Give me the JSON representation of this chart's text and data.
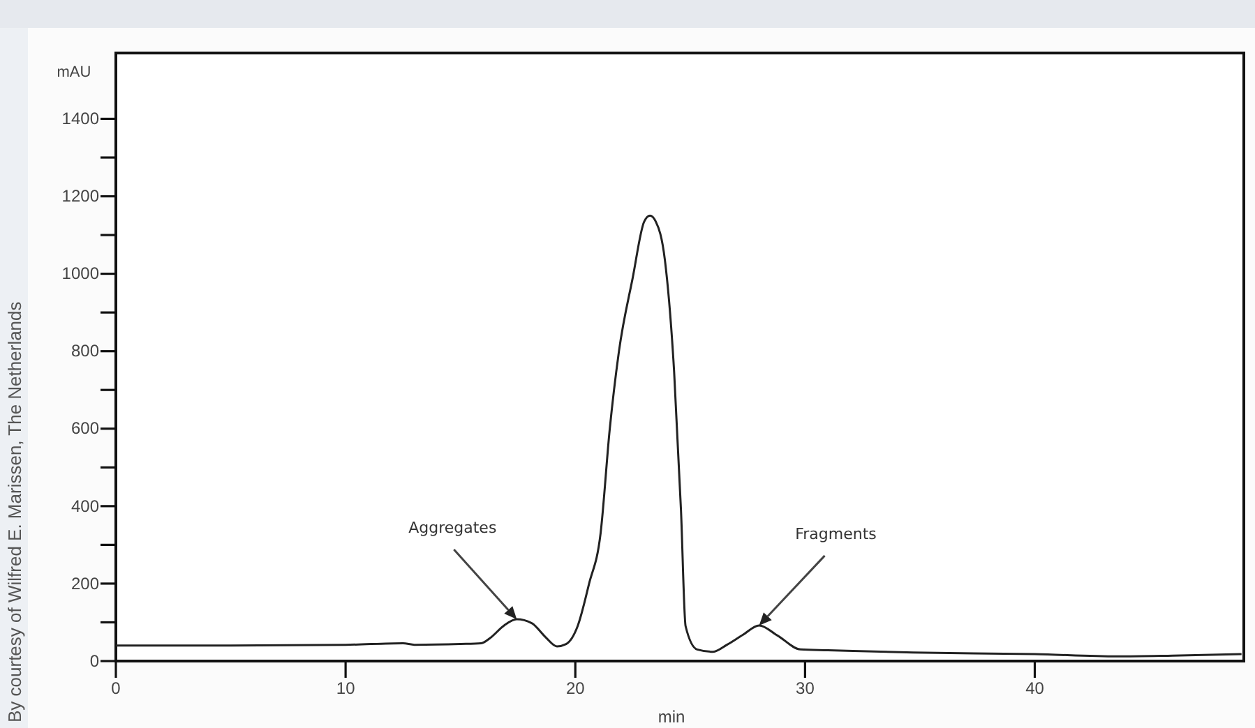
{
  "chart_data": {
    "type": "line",
    "xlabel": "min",
    "ylabel": "mAU",
    "x": [
      0,
      5,
      10,
      12.5,
      13,
      15,
      15.9,
      16.3,
      16.9,
      17.45,
      18.1,
      18.7,
      19.2,
      19.6,
      20.1,
      20.6,
      21.1,
      21.5,
      21.9,
      22.5,
      23.0,
      23.25,
      23.5,
      23.9,
      24.3,
      24.6,
      24.8,
      25.3,
      26.0,
      26.6,
      27.3,
      28.0,
      28.8,
      29.8,
      31,
      34.7,
      40,
      43.6,
      46,
      49
    ],
    "series": [
      {
        "color": "#222222",
        "values": [
          40,
          40,
          42,
          46,
          42,
          44,
          46,
          60,
          92,
          108,
          98,
          62,
          38,
          44,
          90,
          200,
          330,
          600,
          800,
          990,
          1135,
          1150,
          1135,
          1035,
          748,
          389,
          90,
          30,
          24,
          42,
          68,
          92,
          66,
          30,
          28,
          22,
          18,
          12,
          14,
          18
        ]
      }
    ],
    "xlim": [
      0,
      49.1
    ],
    "xticks": [
      0,
      10,
      20,
      30,
      40
    ],
    "ylim": [
      0,
      1570
    ],
    "yticks": [
      0,
      {
        "value": 100,
        "label": null
      },
      200,
      {
        "value": 300,
        "label": null
      },
      400,
      {
        "value": 500,
        "label": null
      },
      600,
      {
        "value": 700,
        "label": null
      },
      800,
      {
        "value": 900,
        "label": null
      },
      1000,
      {
        "value": 1100,
        "label": null
      },
      1200,
      {
        "value": 1300,
        "label": null
      },
      1400
    ],
    "grid": false,
    "marker": "none",
    "line_style": "solid",
    "annotations": [
      {
        "text": "Aggregates",
        "x": 17.45,
        "y": 108
      },
      {
        "text": "Fragments",
        "x": 28.0,
        "y": 92
      },
      "By courtesy of Wilfred E. Marissen, The Netherlands"
    ]
  }
}
